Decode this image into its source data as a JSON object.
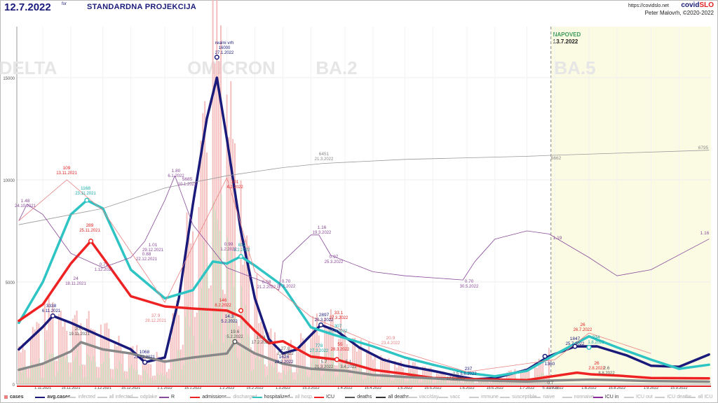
{
  "header": {
    "date": "12.7.2022",
    "for_label": "for",
    "title": "STANDARDNA PROJEKCIJA",
    "url": "https://covidslo.net",
    "brand_a": "covid",
    "brand_b": "SLO",
    "author": "Peter Malovrh, ©2020-2022"
  },
  "chart_data": {
    "type": "line",
    "ylim": [
      0,
      17500
    ],
    "y_ticks": [
      0,
      5000,
      10000,
      15000
    ],
    "y_tick_labels": [
      "0",
      "5000",
      "10000",
      "15000"
    ],
    "x_tick_labels": [
      "1.11.2021",
      "15.11.2021",
      "1.12.2021",
      "15.12.2021",
      "1.1.2022",
      "15.1.2022",
      "1.2.2022",
      "15.2.2022",
      "1.3.2022",
      "15.3.2022",
      "1.4.2022",
      "15.4.2022",
      "1.5.2022",
      "15.5.2022",
      "1.6.2022",
      "15.6.2022",
      "1.7.2022",
      "15.7.2022",
      "1.8.2022",
      "15.8.2022",
      "1.9.2022",
      "15.9.2022"
    ],
    "variant_labels": [
      "DELTA",
      "OMICRON",
      "BA.2",
      "BA.5"
    ],
    "forecast": {
      "label": "NAPOVED",
      "date": "13.7.2022"
    },
    "series": [
      {
        "key": "cases",
        "name": "cases",
        "color": "#e88080"
      },
      {
        "key": "avg_cases",
        "name": "avg.cases",
        "color": "#1a1a7a",
        "x": [
          "20.10.2021",
          "1.11.2021",
          "6.11.2021",
          "15.11.2021",
          "1.12.2021",
          "15.12.2021",
          "22.12.2021",
          "1.1.2022",
          "8.1.2022",
          "15.1.2022",
          "22.1.2022",
          "27.1.2022",
          "1.2.2022",
          "8.2.2022",
          "15.2.2022",
          "22.2.2022",
          "1.3.2022",
          "8.3.2022",
          "20.3.2022",
          "28.3.2022",
          "8.4.2022",
          "20.4.2022",
          "1.5.2022",
          "15.5.2022",
          "27.5.2022",
          "5.6.2022",
          "15.6.2022",
          "1.7.2022",
          "12.7.2022",
          "25.7.2022",
          "5.8.2022",
          "20.8.2022",
          "1.9.2022",
          "15.9.2022",
          "30.9.2022"
        ],
        "values": [
          1700,
          2800,
          3338,
          3000,
          2300,
          1700,
          1068,
          1300,
          4200,
          8800,
          13000,
          15000,
          12000,
          7500,
          4200,
          2200,
          1500,
          1700,
          2897,
          2600,
          1800,
          1200,
          900,
          650,
          400,
          237,
          300,
          700,
          1360,
          1847,
          1850,
          1400,
          900,
          850,
          1450
        ]
      },
      {
        "key": "hospitalized",
        "name": "hospitalized",
        "color": "#2ec4c4",
        "x": [
          "20.10.2021",
          "1.11.2021",
          "15.11.2021",
          "23.11.2021",
          "1.12.2021",
          "15.12.2021",
          "1.1.2022",
          "15.1.2022",
          "25.1.2022",
          "1.2.2022",
          "8.2.2022",
          "15.2.2022",
          "1.3.2022",
          "15.3.2022",
          "27.3.2022",
          "15.4.2022",
          "1.5.2022",
          "15.5.2022",
          "1.6.2022",
          "15.6.2022",
          "1.7.2022",
          "15.7.2022",
          "1.8.2022",
          "15.8.2022",
          "1.9.2022",
          "15.9.2022",
          "30.9.2022"
        ],
        "values": [
          3000,
          5000,
          8300,
          9000,
          8600,
          5600,
          4200,
          4600,
          6000,
          5900,
          6250,
          5800,
          4800,
          2780,
          2400,
          1850,
          1300,
          950,
          550,
          380,
          650,
          1450,
          2340,
          1800,
          1200,
          750,
          950
        ]
      },
      {
        "key": "admissions",
        "name": "admissions",
        "color": "#ee2222",
        "x": [
          "20.10.2021",
          "1.11.2021",
          "15.11.2021",
          "25.11.2021",
          "1.12.2021",
          "15.12.2021",
          "1.1.2022",
          "15.1.2022",
          "1.2.2022",
          "8.2.2022",
          "15.2.2022",
          "22.2.2022",
          "1.3.2022",
          "15.3.2022",
          "28.3.2022",
          "15.4.2022",
          "1.5.2022",
          "15.5.2022",
          "1.6.2022",
          "1.7.2022",
          "15.7.2022",
          "26.7.2022",
          "2.8.2022",
          "15.8.2022",
          "1.9.2022",
          "30.9.2022"
        ],
        "values": [
          3100,
          3900,
          5900,
          7000,
          6200,
          4300,
          3800,
          3700,
          3600,
          3300,
          2600,
          2000,
          2100,
          1350,
          1200,
          700,
          500,
          300,
          250,
          200,
          400,
          560,
          480,
          420,
          300,
          280
        ]
      },
      {
        "key": "deaths",
        "name": "deaths",
        "color": "#888888",
        "x": [
          "20.10.2021",
          "1.11.2021",
          "15.11.2021",
          "20.11.2021",
          "1.12.2021",
          "15.12.2021",
          "1.1.2022",
          "15.1.2022",
          "1.2.2022",
          "5.2.2022",
          "15.2.2022",
          "1.3.2022",
          "15.3.2022",
          "1.4.2022",
          "15.4.2022",
          "1.5.2022",
          "1.6.2022",
          "1.7.2022",
          "15.7.2022",
          "1.8.2022",
          "15.8.2022",
          "1.9.2022",
          "30.9.2022"
        ],
        "values": [
          700,
          1000,
          1600,
          2050,
          1700,
          1500,
          1100,
          1300,
          1500,
          2080,
          1500,
          1000,
          750,
          650,
          450,
          350,
          200,
          130,
          180,
          220,
          200,
          150,
          120
        ]
      },
      {
        "key": "vacc",
        "name": "vacc",
        "color": "#999999",
        "x": [
          "20.10.2021",
          "1.12.2021",
          "1.1.2022",
          "1.2.2022",
          "1.3.2022",
          "21.3.2022",
          "1.5.2022",
          "1.7.2022",
          "13.7.2022",
          "30.9.2022"
        ],
        "values": [
          7800,
          8600,
          9600,
          10200,
          10600,
          10800,
          11000,
          11150,
          11200,
          11450
        ]
      },
      {
        "key": "R",
        "name": "R",
        "color": "#8a4a9a",
        "x": [
          "20.10.2021",
          "24.10.2021",
          "1.11.2021",
          "15.11.2021",
          "1.12.2021",
          "15.12.2021",
          "22.12.2021",
          "1.1.2022",
          "6.1.2022",
          "15.1.2022",
          "1.2.2022",
          "21.2.2022",
          "27.2.2022",
          "1.3.2022",
          "15.3.2022",
          "19.3.2022",
          "25.3.2022",
          "15.4.2022",
          "1.5.2022",
          "30.5.2022",
          "5.6.2022",
          "15.6.2022",
          "1.7.2022",
          "12.7.2022",
          "1.8.2022",
          "15.8.2022",
          "1.9.2022",
          "30.9.2022"
        ],
        "values": [
          8000,
          8800,
          8300,
          6400,
          5700,
          6200,
          7000,
          9000,
          10200,
          7800,
          5700,
          4950,
          4600,
          6000,
          7300,
          7300,
          6300,
          5500,
          5300,
          5100,
          6000,
          7100,
          7500,
          7350,
          6200,
          5300,
          5600,
          7100
        ]
      }
    ],
    "annotations": [
      {
        "text": "realni vrh",
        "sub": "16000",
        "date": "27.1.2022"
      },
      {
        "text": "109",
        "sub": "13.11.2021"
      },
      {
        "text": "1168",
        "sub": "23.11.2021"
      },
      {
        "text": "289",
        "sub": "25.11.2021"
      },
      {
        "text": "3338",
        "sub": "6.11.2021"
      },
      {
        "text": "1068",
        "sub": "22.12.2021"
      },
      {
        "text": "101",
        "sub": "4.2.2022"
      },
      {
        "text": "812",
        "sub": "8.2.2022"
      },
      {
        "text": "146",
        "sub": "8.2.2022"
      },
      {
        "text": "2897",
        "sub": "20.3.2022"
      },
      {
        "text": "33.1",
        "sub": "27.3.2022"
      },
      {
        "text": "55",
        "sub": "28.3.2022"
      },
      {
        "text": "1626",
        "sub": "28.2.2022"
      },
      {
        "text": "237",
        "sub": "5.6.2022"
      },
      {
        "text": "1847",
        "sub": "25.7.2022"
      },
      {
        "text": "234",
        "sub": "1.8.2022"
      },
      {
        "text": "26",
        "sub": "26.7.2022"
      },
      {
        "text": "26",
        "sub": "2.8.2022"
      },
      {
        "text": "1360",
        "sub": ""
      },
      {
        "text": "6451",
        "sub": "21.3.2022"
      },
      {
        "text": "6662",
        "sub": ""
      },
      {
        "text": "6795",
        "sub": ""
      },
      {
        "text": "1.48",
        "sub": "24.10.2021"
      },
      {
        "text": "1.80",
        "sub": "6.1.2022"
      },
      {
        "text": "5685",
        "sub": "10.1.2022"
      },
      {
        "text": "1.16",
        "sub": "19.3.2022"
      },
      {
        "text": "0.97",
        "sub": "25.3.2022"
      },
      {
        "text": "0.70",
        "sub": "27.2.2022"
      },
      {
        "text": "0.70",
        "sub": "30.5.2022"
      },
      {
        "text": "1.19",
        "sub": ""
      },
      {
        "text": "1.16",
        "sub": ""
      },
      {
        "text": "0.71",
        "sub": "1.12.2021"
      },
      {
        "text": "0.88",
        "sub": "22.12.2021"
      },
      {
        "text": "1.01",
        "sub": "29.12.2021"
      },
      {
        "text": "0.99",
        "sub": "1.2.2022"
      },
      {
        "text": "0.58",
        "sub": "21.2.2022"
      },
      {
        "text": "24",
        "sub": "18.11.2021"
      },
      {
        "text": "20.7",
        "sub": "19.11.2021"
      },
      {
        "text": "37.9",
        "sub": "28.12.2021"
      },
      {
        "text": "14.3",
        "sub": "5.2.2022"
      },
      {
        "text": "19.6",
        "sub": "5.2.2022"
      },
      {
        "text": "17.4",
        "sub": "17.2.2022"
      },
      {
        "text": "27.8",
        "sub": "2.3.2022"
      },
      {
        "text": "20.9",
        "sub": "23.4.2022"
      },
      {
        "text": "5.7",
        "sub": "21.3.2022"
      },
      {
        "text": "5.1",
        "sub": "3.4.2022"
      },
      {
        "text": "2.5",
        "sub": "27.5.2022"
      },
      {
        "text": "2.6",
        "sub": "8.8.2022"
      },
      {
        "text": "0.7",
        "sub": "5.7.2022"
      },
      {
        "text": "778",
        "sub": "27.3.2022"
      },
      {
        "text": "307",
        "sub": "27.3.2022"
      }
    ]
  },
  "legend": [
    {
      "label": "cases",
      "color": "#e88080",
      "kind": "square",
      "style": "bold"
    },
    {
      "label": "avg.cases",
      "color": "#1a1a7a",
      "kind": "line",
      "style": "bold"
    },
    {
      "label": "infected",
      "color": "#cccccc",
      "kind": "line",
      "style": "dim"
    },
    {
      "label": "all infected",
      "color": "#cccccc",
      "kind": "line",
      "style": "dim"
    },
    {
      "label": "odplake",
      "color": "#cccccc",
      "kind": "line",
      "style": "dim"
    },
    {
      "label": "R",
      "color": "#8a4a9a",
      "kind": "line",
      "style": "normal"
    },
    {
      "label": "admissions",
      "color": "#ee2222",
      "kind": "line",
      "style": "normal"
    },
    {
      "label": "discharged",
      "color": "#cccccc",
      "kind": "line",
      "style": "dim"
    },
    {
      "label": "hospitalized",
      "color": "#2ec4c4",
      "kind": "line",
      "style": "normal"
    },
    {
      "label": "all hosp.",
      "color": "#cccccc",
      "kind": "line",
      "style": "dim"
    },
    {
      "label": "ICU",
      "color": "#ee2222",
      "kind": "line",
      "style": "normal"
    },
    {
      "label": "deaths",
      "color": "#555555",
      "kind": "line",
      "style": "normal"
    },
    {
      "label": "all deaths",
      "color": "#333333",
      "kind": "line",
      "style": "normal"
    },
    {
      "label": "vacc/day",
      "color": "#cccccc",
      "kind": "line",
      "style": "dim"
    },
    {
      "label": "vacc",
      "color": "#cccccc",
      "kind": "line",
      "style": "dim"
    },
    {
      "label": "immune",
      "color": "#cccccc",
      "kind": "line",
      "style": "dim"
    },
    {
      "label": "susceptible",
      "color": "#cccccc",
      "kind": "line",
      "style": "dim"
    },
    {
      "label": "naive",
      "color": "#cccccc",
      "kind": "line",
      "style": "dim"
    },
    {
      "label": "nonnaive",
      "color": "#cccccc",
      "kind": "line",
      "style": "dim"
    },
    {
      "label": "ICU in",
      "color": "#8a2a9a",
      "kind": "line",
      "style": "normal"
    },
    {
      "label": "ICU out",
      "color": "#cccccc",
      "kind": "line",
      "style": "dim"
    },
    {
      "label": "ICU deaths",
      "color": "#cccccc",
      "kind": "line",
      "style": "dim"
    },
    {
      "label": "all ICU",
      "color": "#cccccc",
      "kind": "line",
      "style": "dim"
    }
  ]
}
